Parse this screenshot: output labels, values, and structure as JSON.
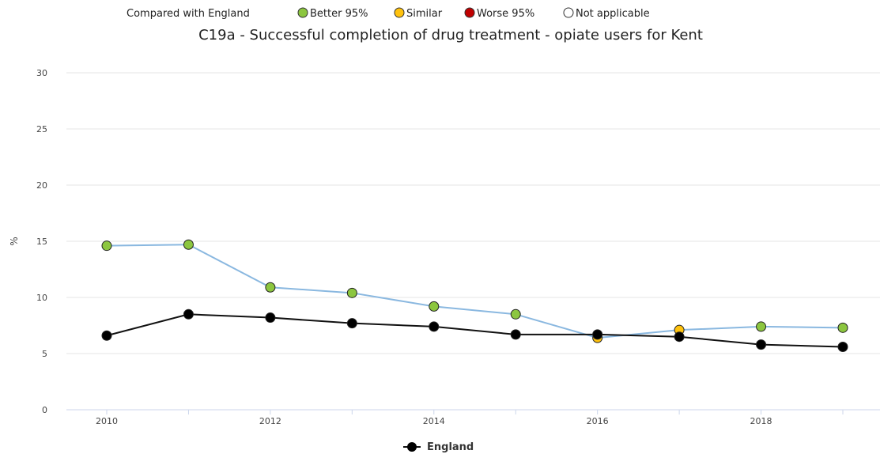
{
  "legend": {
    "label": "Compared with England",
    "items": [
      {
        "label": "Better 95%",
        "color": "#8cc63f"
      },
      {
        "label": "Similar",
        "color": "#ffc20e"
      },
      {
        "label": "Worse 95%",
        "color": "#c00000"
      },
      {
        "label": "Not applicable",
        "color": "#ffffff"
      }
    ]
  },
  "chart_data": {
    "type": "line",
    "title": "C19a - Successful completion of drug treatment - opiate users for Kent",
    "ylabel": "%",
    "xlabel": "",
    "ylim": [
      0,
      30
    ],
    "yticks": [
      0,
      5,
      10,
      15,
      20,
      25,
      30
    ],
    "xlim": [
      2010,
      2019
    ],
    "xticks": [
      2010,
      2012,
      2014,
      2016,
      2018
    ],
    "grid": true,
    "legend_position": "bottom",
    "series": [
      {
        "name": "",
        "line_color": "#8ab8e0",
        "x": [
          2010,
          2011,
          2012,
          2013,
          2014,
          2015,
          2016,
          2017,
          2018,
          2019
        ],
        "values": [
          14.6,
          14.7,
          10.9,
          10.4,
          9.2,
          8.5,
          6.4,
          7.1,
          7.4,
          7.3
        ],
        "point_colors": [
          "#8cc63f",
          "#8cc63f",
          "#8cc63f",
          "#8cc63f",
          "#8cc63f",
          "#8cc63f",
          "#ffc20e",
          "#ffc20e",
          "#8cc63f",
          "#8cc63f"
        ]
      },
      {
        "name": "England",
        "line_color": "#111111",
        "x": [
          2010,
          2011,
          2012,
          2013,
          2014,
          2015,
          2016,
          2017,
          2018,
          2019
        ],
        "values": [
          6.6,
          8.5,
          8.2,
          7.7,
          7.4,
          6.7,
          6.7,
          6.5,
          5.8,
          5.6
        ],
        "point_colors": [
          "#000000",
          "#000000",
          "#000000",
          "#000000",
          "#000000",
          "#000000",
          "#000000",
          "#000000",
          "#000000",
          "#000000"
        ]
      }
    ]
  }
}
